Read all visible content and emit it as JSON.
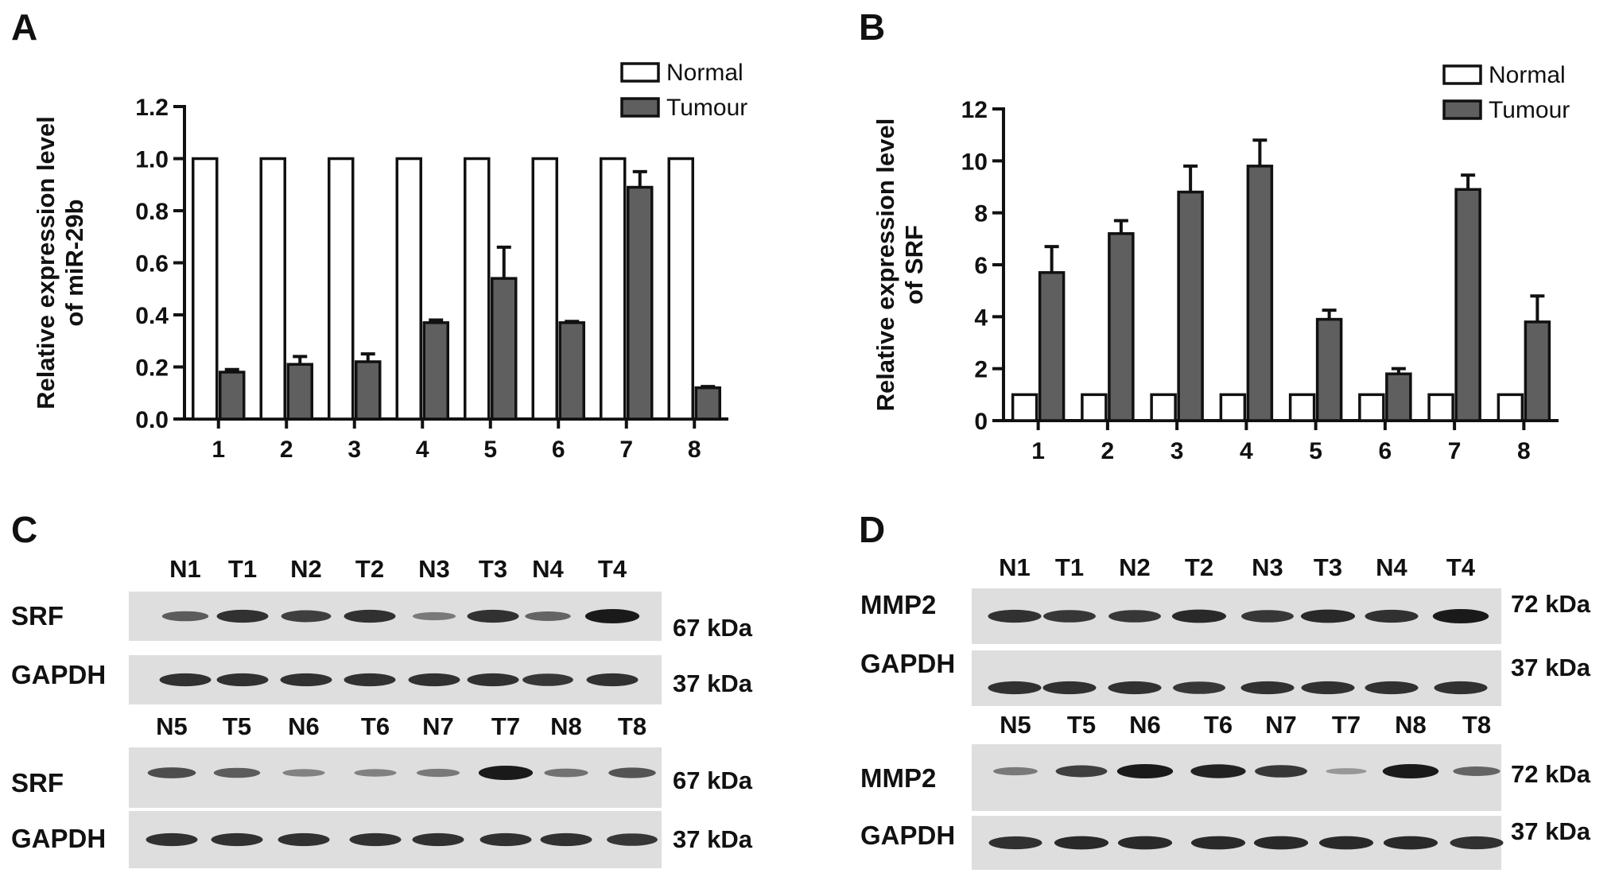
{
  "panels": {
    "A": {
      "letter": "A"
    },
    "B": {
      "letter": "B"
    },
    "C": {
      "letter": "C"
    },
    "D": {
      "letter": "D"
    }
  },
  "colors": {
    "normal_fill": "#ffffff",
    "tumour_fill": "#5f5f5f",
    "ink": "#111111",
    "blot_bg": "#dedede",
    "band": "#1a1a1a"
  },
  "chart_data": [
    {
      "id": "A",
      "type": "bar",
      "categories": [
        "1",
        "2",
        "3",
        "4",
        "5",
        "6",
        "7",
        "8"
      ],
      "ylabel": "Relative expression level of miR-29b",
      "ylabel_lines": [
        "Relative expression level",
        "of miR-29b"
      ],
      "ylim": [
        0,
        1.2
      ],
      "yticks": [
        "0.0",
        "0.2",
        "0.4",
        "0.6",
        "0.8",
        "1.0",
        "1.2"
      ],
      "legend_position": "top-right",
      "series": [
        {
          "name": "Normal",
          "values": [
            1.0,
            1.0,
            1.0,
            1.0,
            1.0,
            1.0,
            1.0,
            1.0
          ],
          "errors": [
            0,
            0,
            0,
            0,
            0,
            0,
            0,
            0
          ]
        },
        {
          "name": "Tumour",
          "values": [
            0.18,
            0.21,
            0.22,
            0.37,
            0.54,
            0.37,
            0.89,
            0.12
          ],
          "errors": [
            0.01,
            0.03,
            0.03,
            0.01,
            0.12,
            0.005,
            0.06,
            0.005
          ]
        }
      ]
    },
    {
      "id": "B",
      "type": "bar",
      "categories": [
        "1",
        "2",
        "3",
        "4",
        "5",
        "6",
        "7",
        "8"
      ],
      "ylabel": "Relative expression level of SRF",
      "ylabel_lines": [
        "Relative expression level",
        "of SRF"
      ],
      "ylim": [
        0,
        12
      ],
      "yticks": [
        "0",
        "2",
        "4",
        "6",
        "8",
        "10",
        "12"
      ],
      "legend_position": "top-right",
      "series": [
        {
          "name": "Normal",
          "values": [
            1,
            1,
            1,
            1,
            1,
            1,
            1,
            1
          ],
          "errors": [
            0,
            0,
            0,
            0,
            0,
            0,
            0,
            0
          ]
        },
        {
          "name": "Tumour",
          "values": [
            5.7,
            7.2,
            8.8,
            9.8,
            3.9,
            1.8,
            8.9,
            3.8
          ],
          "errors": [
            1.0,
            0.5,
            1.0,
            1.0,
            0.35,
            0.2,
            0.55,
            1.0
          ]
        }
      ]
    }
  ],
  "blots": {
    "C": {
      "top": {
        "lanes": [
          "N1",
          "T1",
          "N2",
          "T2",
          "N3",
          "T3",
          "N4",
          "T4"
        ],
        "rows": [
          {
            "label": "SRF",
            "kda": "67 kDa",
            "intensity": [
              0.55,
              0.85,
              0.75,
              0.85,
              0.35,
              0.85,
              0.5,
              1.0
            ]
          },
          {
            "label": "GAPDH",
            "kda": "37 kDa",
            "intensity": [
              0.85,
              0.85,
              0.85,
              0.85,
              0.85,
              0.85,
              0.8,
              0.85
            ]
          }
        ]
      },
      "bottom": {
        "lanes": [
          "N5",
          "T5",
          "N6",
          "T6",
          "N7",
          "T7",
          "N8",
          "T8"
        ],
        "rows": [
          {
            "label": "SRF",
            "kda": "67 kDa",
            "intensity": [
              0.65,
              0.55,
              0.3,
              0.3,
              0.35,
              1.0,
              0.4,
              0.6
            ]
          },
          {
            "label": "GAPDH",
            "kda": "37 kDa",
            "intensity": [
              0.85,
              0.85,
              0.85,
              0.85,
              0.85,
              0.85,
              0.85,
              0.8
            ]
          }
        ]
      }
    },
    "D": {
      "top": {
        "lanes": [
          "N1",
          "T1",
          "N2",
          "T2",
          "N3",
          "T3",
          "N4",
          "T4"
        ],
        "rows": [
          {
            "label": "MMP2",
            "kda": "72 kDa",
            "intensity": [
              0.85,
              0.8,
              0.8,
              0.9,
              0.8,
              0.9,
              0.85,
              1.0
            ]
          },
          {
            "label": "GAPDH",
            "kda": "37 kDa",
            "intensity": [
              0.85,
              0.85,
              0.85,
              0.8,
              0.85,
              0.85,
              0.85,
              0.85
            ]
          }
        ]
      },
      "bottom": {
        "lanes": [
          "N5",
          "T5",
          "N6",
          "T6",
          "N7",
          "T7",
          "N8",
          "T8"
        ],
        "rows": [
          {
            "label": "MMP2",
            "kda": "72 kDa",
            "intensity": [
              0.35,
              0.75,
              1.0,
              0.95,
              0.8,
              0.15,
              1.0,
              0.5
            ]
          },
          {
            "label": "GAPDH",
            "kda": "37 kDa",
            "intensity": [
              0.85,
              0.9,
              0.9,
              0.9,
              0.9,
              0.9,
              0.9,
              0.85
            ]
          }
        ]
      }
    }
  }
}
